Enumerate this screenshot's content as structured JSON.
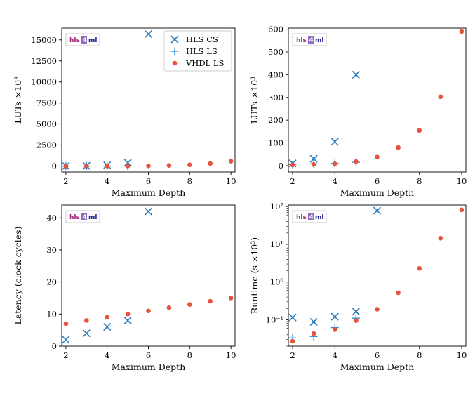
{
  "colors": {
    "hls_cs": "#2f7ab8",
    "hls_ls": "#3b8fcf",
    "vhdl_ls": "#e5533c",
    "badge_hls": "#a5287a",
    "badge_4": "#ffffff",
    "badge_4_bg": "#8e6cbf",
    "badge_ml": "#23238a"
  },
  "badge": {
    "hls": "hls",
    "four": "4",
    "ml": "ml"
  },
  "chart_data": [
    {
      "type": "scatter",
      "xlabel": "Maximum Depth",
      "ylabel": "LUTs ×10³",
      "xlim": [
        1.8,
        10.2
      ],
      "xticks": [
        "2",
        "4",
        "6",
        "8",
        "10"
      ],
      "ylim": [
        -700,
        16400
      ],
      "yticks": [
        "0",
        "2500",
        "5000",
        "7500",
        "10000",
        "12500",
        "15000"
      ],
      "yscale": "linear",
      "legend": "top-right",
      "series": [
        {
          "name": "HLS CS",
          "marker": "x",
          "x": [
            2,
            3,
            4,
            5,
            6
          ],
          "y": [
            10,
            30,
            105,
            400,
            15700
          ]
        },
        {
          "name": "HLS LS",
          "marker": "+",
          "x": [
            2,
            3,
            4,
            5
          ],
          "y": [
            5,
            8,
            10,
            15
          ]
        },
        {
          "name": "VHDL LS",
          "marker": "o",
          "x": [
            2,
            3,
            4,
            5,
            6,
            7,
            8,
            9,
            10
          ],
          "y": [
            3,
            5,
            8,
            18,
            38,
            80,
            155,
            303,
            590
          ]
        }
      ]
    },
    {
      "type": "scatter",
      "xlabel": "Maximum Depth",
      "ylabel": "LUTs ×10³",
      "xlim": [
        1.8,
        10.2
      ],
      "xticks": [
        "2",
        "4",
        "6",
        "8",
        "10"
      ],
      "ylim": [
        -28,
        605
      ],
      "yticks": [
        "0",
        "100",
        "200",
        "300",
        "400",
        "500",
        "600"
      ],
      "yscale": "linear",
      "series": [
        {
          "name": "HLS CS",
          "marker": "x",
          "x": [
            2,
            3,
            4,
            5
          ],
          "y": [
            10,
            30,
            105,
            400
          ]
        },
        {
          "name": "HLS LS",
          "marker": "+",
          "x": [
            2,
            3,
            4,
            5
          ],
          "y": [
            5,
            8,
            10,
            15
          ]
        },
        {
          "name": "VHDL LS",
          "marker": "o",
          "x": [
            2,
            3,
            4,
            5,
            6,
            7,
            8,
            9,
            10
          ],
          "y": [
            3,
            5,
            8,
            18,
            38,
            80,
            155,
            303,
            590
          ]
        }
      ]
    },
    {
      "type": "scatter",
      "xlabel": "Maximum Depth",
      "ylabel": "Latency (clock cycles)",
      "xlim": [
        1.8,
        10.2
      ],
      "xticks": [
        "2",
        "4",
        "6",
        "8",
        "10"
      ],
      "ylim": [
        0,
        44
      ],
      "yticks": [
        "0",
        "10",
        "20",
        "30",
        "40"
      ],
      "yscale": "linear",
      "series": [
        {
          "name": "HLS CS",
          "marker": "x",
          "x": [
            2,
            3,
            4,
            5,
            6
          ],
          "y": [
            2,
            4,
            6,
            8,
            42
          ]
        },
        {
          "name": "VHDL LS",
          "marker": "o",
          "x": [
            2,
            3,
            4,
            5,
            6,
            7,
            8,
            9,
            10
          ],
          "y": [
            7,
            8,
            9,
            10,
            11,
            12,
            13,
            14,
            15
          ]
        }
      ]
    },
    {
      "type": "scatter",
      "xlabel": "Maximum Depth",
      "ylabel": "Runtime (s ×10³)",
      "xlim": [
        1.8,
        10.2
      ],
      "xticks": [
        "2",
        "4",
        "6",
        "8",
        "10"
      ],
      "ylim": [
        0.02,
        110
      ],
      "yticks": [
        "10⁻¹",
        "10⁰",
        "10¹",
        "10²"
      ],
      "yscale": "log",
      "series": [
        {
          "name": "HLS CS",
          "marker": "x",
          "x": [
            2,
            3,
            4,
            5,
            6
          ],
          "y": [
            0.115,
            0.088,
            0.12,
            0.165,
            78
          ]
        },
        {
          "name": "HLS LS",
          "marker": "+",
          "x": [
            2,
            3,
            4,
            5
          ],
          "y": [
            0.033,
            0.036,
            0.062,
            0.11
          ]
        },
        {
          "name": "VHDL LS",
          "marker": "o",
          "x": [
            2,
            3,
            4,
            5,
            6,
            7,
            8,
            9,
            10
          ],
          "y": [
            0.027,
            0.043,
            0.055,
            0.095,
            0.19,
            0.52,
            2.3,
            14.5,
            82
          ]
        }
      ]
    }
  ]
}
